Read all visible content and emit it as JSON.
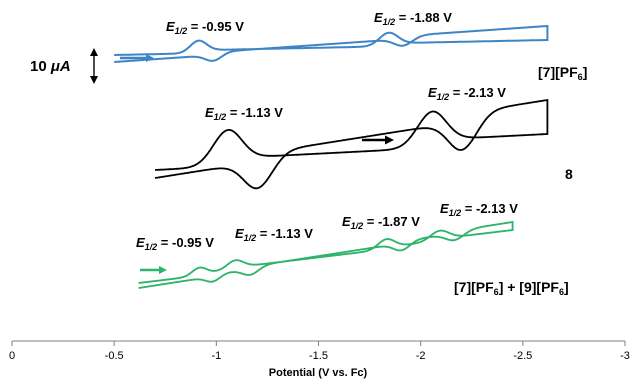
{
  "chart_data": {
    "type": "line",
    "title": "",
    "xlabel": "Potential (V vs. Fc)",
    "ylabel": "",
    "x_axis": {
      "xlim": [
        0,
        -3
      ],
      "ticks": [
        "0",
        "-0.5",
        "-1",
        "-1.5",
        "-2",
        "-2.5",
        "-3"
      ],
      "reversed": true
    },
    "scale_bar": {
      "value": 10,
      "label_value": "10 ",
      "label_unit": "μA"
    },
    "grid": false,
    "legend": "none",
    "series": [
      {
        "name": "[7][PF6]",
        "label_main": "[7][PF",
        "label_sub": "6",
        "label_close": "]",
        "color": "#3d85c6",
        "x_range": [
          -0.5,
          -2.62
        ],
        "sweep_direction": "cathodic",
        "waves": [
          {
            "e_half": -0.95,
            "label_value": " = -0.95 V"
          },
          {
            "e_half": -1.88,
            "label_value": " = -1.88 V"
          }
        ]
      },
      {
        "name": "8",
        "label_main": "8",
        "label_sub": "",
        "label_close": "",
        "color": "#000000",
        "x_range": [
          -0.7,
          -2.62
        ],
        "sweep_direction": "cathodic",
        "waves": [
          {
            "e_half": -1.13,
            "label_value": " = -1.13 V"
          },
          {
            "e_half": -2.13,
            "label_value": " = -2.13 V"
          }
        ]
      },
      {
        "name": "[7][PF6] + [9][PF6]",
        "label_main": "[7][PF",
        "label_sub": "6",
        "label_close": "] + [9][PF",
        "label_sub2": "6",
        "label_close2": "]",
        "color": "#2eb36a",
        "x_range": [
          -0.62,
          -2.45
        ],
        "sweep_direction": "cathodic",
        "waves": [
          {
            "e_half": -0.95,
            "label_value": " = -0.95 V"
          },
          {
            "e_half": -1.13,
            "label_value": " = -1.13 V"
          },
          {
            "e_half": -1.87,
            "label_value": " = -1.87 V"
          },
          {
            "e_half": -2.13,
            "label_value": " = -2.13 V"
          }
        ]
      }
    ],
    "e_half_symbol": "E",
    "e_half_subscript": "1/2"
  }
}
